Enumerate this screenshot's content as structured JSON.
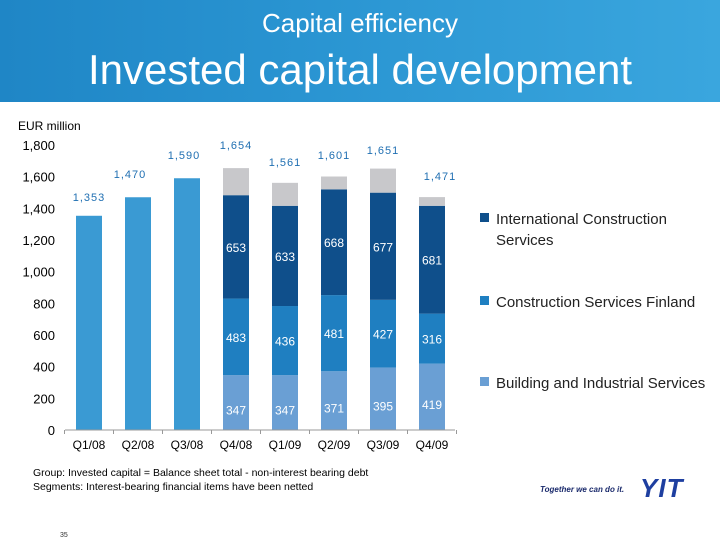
{
  "header": {
    "subtitle": "Capital efficiency",
    "title": "Invested capital development"
  },
  "unit_label": "EUR million",
  "footnotes": [
    "Group: Invested capital = Balance sheet total - non-interest bearing debt",
    "Segments: Interest-bearing financial items have been netted"
  ],
  "page_number": "35",
  "brand": {
    "tagline": "Together we can do it.",
    "logo": "YIT"
  },
  "colors": {
    "international": "#0f4f8b",
    "finland": "#1f7fc1",
    "building": "#6a9fd4",
    "group_total": "#3a9ad3",
    "other": "#c8c8cb",
    "total_label": "#1f6fb2"
  },
  "chart_data": {
    "type": "bar",
    "ylim": [
      0,
      1800
    ],
    "yticks": [
      "0",
      "200",
      "400",
      "600",
      "800",
      "1,000",
      "1,200",
      "1,400",
      "1,600",
      "1,800"
    ],
    "categories": [
      "Q1/08",
      "Q2/08",
      "Q3/08",
      "Q4/08",
      "Q1/09",
      "Q2/09",
      "Q3/09",
      "Q4/09"
    ],
    "totals": [
      1353,
      1470,
      1590,
      1654,
      1561,
      1601,
      1651,
      1471
    ],
    "total_labels": [
      "1,353",
      "1,470",
      "1,590",
      "1,654",
      "1,561",
      "1,601",
      "1,651",
      "1,471"
    ],
    "series": [
      {
        "name": "Building and Industrial Services",
        "values": [
          null,
          null,
          null,
          347,
          347,
          371,
          395,
          419
        ]
      },
      {
        "name": "Construction Services Finland",
        "values": [
          null,
          null,
          null,
          483,
          436,
          481,
          427,
          316
        ]
      },
      {
        "name": "International Construction Services",
        "values": [
          null,
          null,
          null,
          653,
          633,
          668,
          677,
          681
        ]
      }
    ],
    "legend_position": "right",
    "grid": false
  }
}
